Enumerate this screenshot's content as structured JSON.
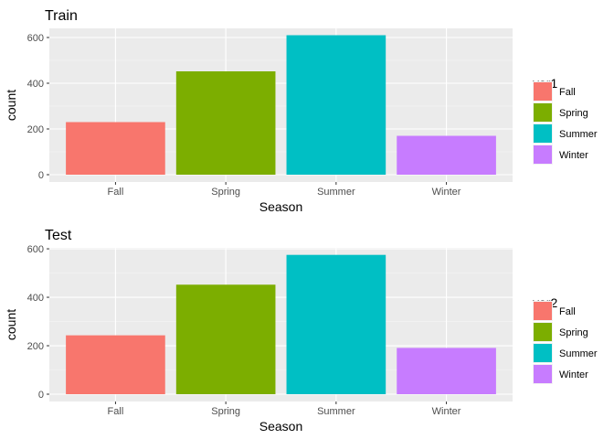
{
  "chart_data": [
    {
      "type": "bar",
      "title": "Train",
      "xlabel": "Season",
      "ylabel": "count",
      "categories": [
        "Fall",
        "Spring",
        "Summer",
        "Winter"
      ],
      "values": [
        230,
        452,
        610,
        170
      ],
      "ylim": [
        0,
        630
      ],
      "yticks": [
        0,
        200,
        400,
        600
      ],
      "grid": true,
      "legend": {
        "title": "var1",
        "position": "right",
        "entries": [
          "Fall",
          "Spring",
          "Summer",
          "Winter"
        ]
      }
    },
    {
      "type": "bar",
      "title": "Test",
      "xlabel": "Season",
      "ylabel": "count",
      "categories": [
        "Fall",
        "Spring",
        "Summer",
        "Winter"
      ],
      "values": [
        243,
        452,
        575,
        191
      ],
      "ylim": [
        0,
        600
      ],
      "yticks": [
        0,
        200,
        400,
        600
      ],
      "grid": true,
      "legend": {
        "title": "var2",
        "position": "right",
        "entries": [
          "Fall",
          "Spring",
          "Summer",
          "Winter"
        ]
      }
    }
  ],
  "colors": {
    "Fall": "#F8766D",
    "Spring": "#7CAE00",
    "Summer": "#00BFC4",
    "Winter": "#C77CFF",
    "panel_bg": "#EBEBEB",
    "grid_major": "#FFFFFF",
    "grid_minor": "#F5F5F5"
  }
}
